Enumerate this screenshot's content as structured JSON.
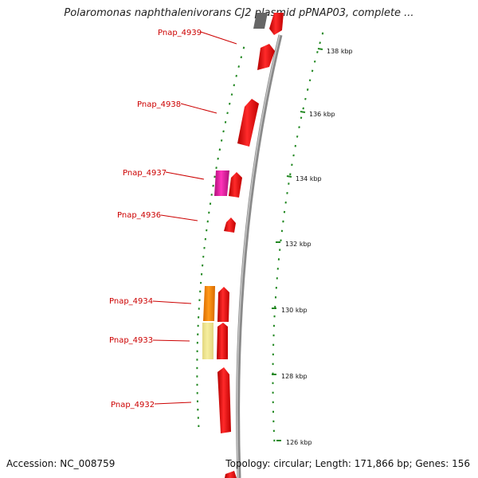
{
  "title": "Polaromonas naphthalenivorans CJ2 plasmid pPNAP03, complete ...",
  "footer": {
    "accession": "Accession: NC_008759",
    "stats": "Topology: circular; Length: 171,866 bp; Genes: 156"
  },
  "colors": {
    "gene_default": "#ee1111",
    "gene_magenta": "#ee22aa",
    "gene_orange": "#ff8800",
    "gene_pale_yellow": "#f0e68c",
    "backbone": "#888888",
    "tick": "#228822",
    "label": "#cc0000"
  },
  "scale_labels": [
    "138 kbp",
    "136 kbp",
    "134 kbp",
    "132 kbp",
    "130 kbp",
    "128 kbp",
    "126 kbp"
  ],
  "gene_labels": [
    "Pnap_4939",
    "Pnap_4938",
    "Pnap_4937",
    "Pnap_4936",
    "Pnap_4934",
    "Pnap_4933",
    "Pnap_4932"
  ]
}
